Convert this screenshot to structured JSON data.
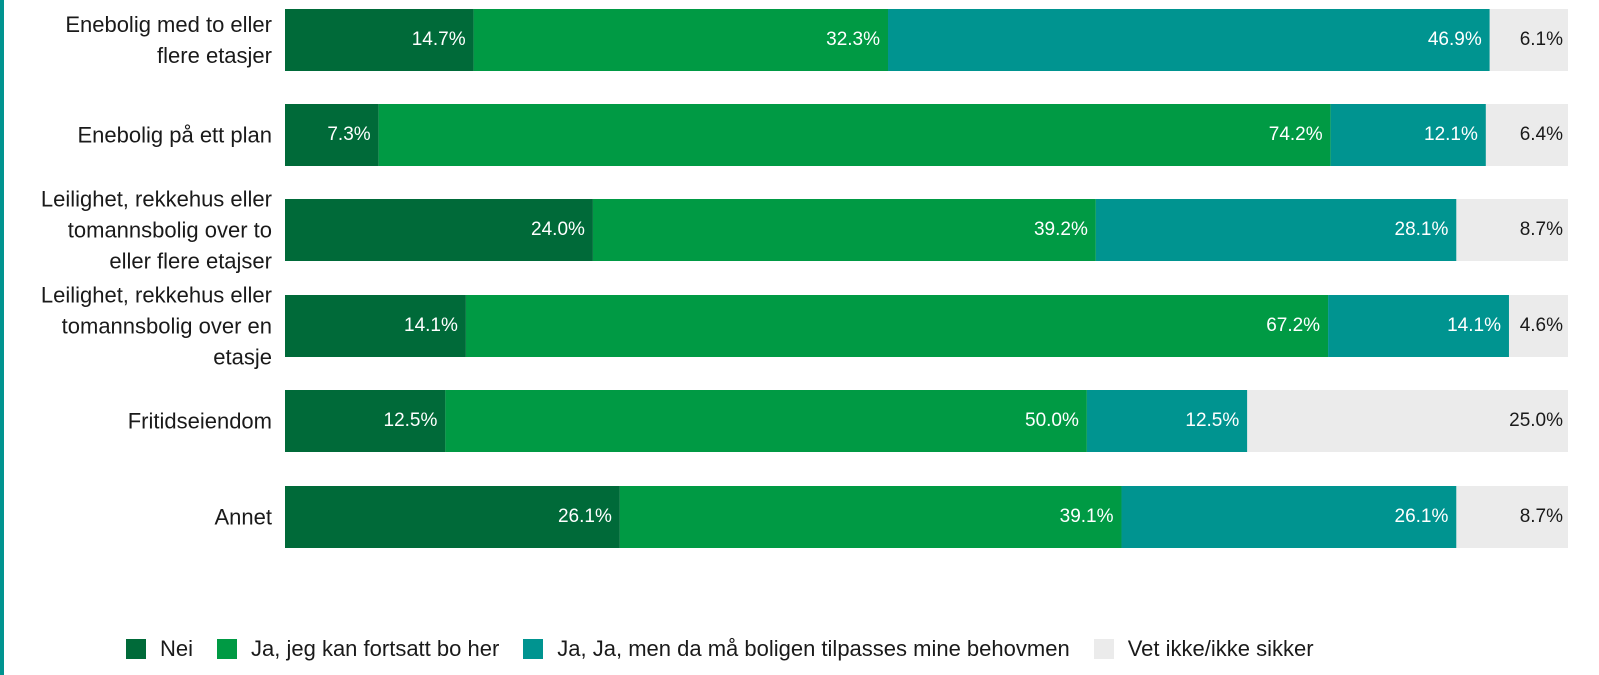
{
  "chart_data": {
    "type": "stacked_bar_horizontal",
    "categories": [
      "Enebolig med to eller\nflere etasjer",
      "Enebolig på ett plan",
      "Leilighet, rekkehus eller\ntomannsbolig over to\neller flere etajser",
      "Leilighet, rekkehus eller\ntomannsbolig over en\netasje",
      "Fritidseiendom",
      "Annet"
    ],
    "xlim": [
      0,
      100
    ],
    "legend": "bottom",
    "series": [
      {
        "name": "Nei",
        "color": "#006a39",
        "values": [
          14.7,
          7.3,
          24.0,
          14.1,
          12.5,
          26.1
        ],
        "value_labels": [
          "14.7%",
          "7.3%",
          "24.0%",
          "14.1%",
          "12.5%",
          "26.1%"
        ]
      },
      {
        "name": "Ja, jeg kan fortsatt bo her",
        "color": "#009a44",
        "values": [
          32.3,
          74.2,
          39.2,
          67.2,
          50.0,
          39.1
        ],
        "value_labels": [
          "32.3%",
          "74.2%",
          "39.2%",
          "67.2%",
          "50.0%",
          "39.1%"
        ]
      },
      {
        "name": "Ja, Ja, men da må boligen tilpasses mine behovmen",
        "color": "#009490",
        "values": [
          46.9,
          12.1,
          28.1,
          14.1,
          12.5,
          26.1
        ],
        "value_labels": [
          "46.9%",
          "12.1%",
          "28.1%",
          "14.1%",
          "12.5%",
          "26.1%"
        ]
      },
      {
        "name": "Vet ikke/ikke sikker",
        "color": "#ebebeb",
        "values": [
          6.1,
          6.4,
          8.7,
          4.6,
          25.0,
          8.7
        ],
        "value_labels": [
          "6.1%",
          "6.4%",
          "8.7%",
          "4.6%",
          "25.0%",
          "8.7%"
        ]
      }
    ]
  }
}
